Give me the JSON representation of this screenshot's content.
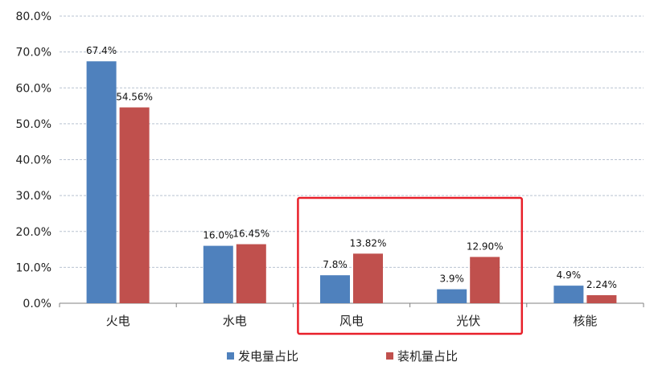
{
  "chart_data": {
    "type": "bar",
    "title": "",
    "xlabel": "",
    "ylabel": "",
    "categories": [
      "火电",
      "水电",
      "风电",
      "光伏",
      "核能"
    ],
    "series": [
      {
        "name": "发电量占比",
        "color": "#4F81BD",
        "values": [
          67.4,
          16.0,
          7.8,
          3.9,
          4.9
        ],
        "labels": [
          "67.4%",
          "16.0%",
          "7.8%",
          "3.9%",
          "4.9%"
        ]
      },
      {
        "name": "装机量占比",
        "color": "#C0504D",
        "values": [
          54.56,
          16.45,
          13.82,
          12.9,
          2.24
        ],
        "labels": [
          "54.56%",
          "16.45%",
          "13.82%",
          "12.90%",
          "2.24%"
        ]
      }
    ],
    "ylim": [
      0,
      80
    ],
    "yticks": [
      "0.0%",
      "10.0%",
      "20.0%",
      "30.0%",
      "40.0%",
      "50.0%",
      "60.0%",
      "70.0%",
      "80.0%"
    ],
    "grid": true,
    "legend_position": "bottom",
    "highlight": {
      "categories": [
        "风电",
        "光伏"
      ],
      "color": "#E8202A"
    }
  }
}
